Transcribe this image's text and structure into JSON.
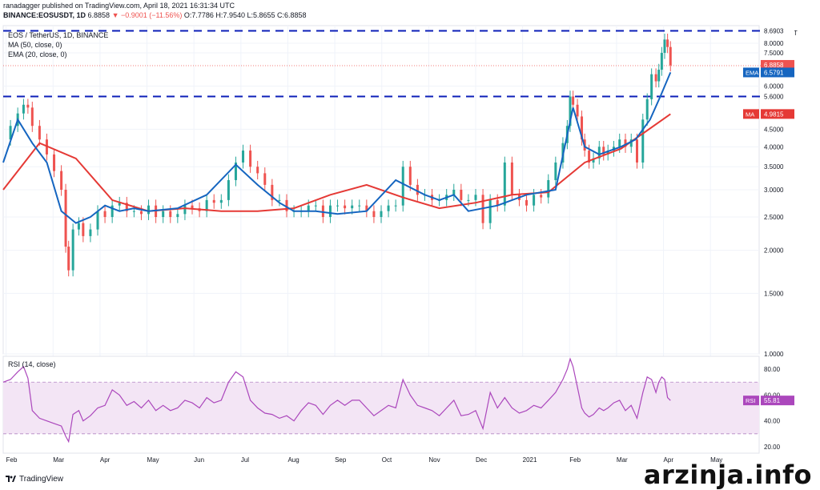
{
  "header": {
    "line1": "ranadagger published on TradingView.com, April 18, 2021 16:31:34 UTC",
    "symbol": "BINANCE:EOSUSDT, 1D",
    "last": "6.8858",
    "change": "▼ −0.9001 (−11.56%)",
    "ohlc": "O:7.7786 H:7.9540 L:5.8655 C:6.8858"
  },
  "legend": {
    "title": "EOS / TetherUS, 1D, BINANCE",
    "ma": "MA (50, close, 0)",
    "ema": "EMA (20, close, 0)",
    "rsi": "RSI (14, close)"
  },
  "brand": {
    "name": "TradingView"
  },
  "watermark": "arzinja.info",
  "colors": {
    "up": "#26a69a",
    "down": "#ef5350",
    "ma": "#e53935",
    "ema": "#1565c0",
    "rsi": "#ab47bc",
    "level": "#0d1fb8"
  },
  "chart_data": [
    {
      "type": "line",
      "title": "EOS / TetherUS, 1D, BINANCE",
      "unit_label": "USDT",
      "y_ticks": [
        "1.0000",
        "1.5000",
        "2.0000",
        "2.5000",
        "3.0000",
        "3.5000",
        "4.0000",
        "4.5000",
        "6.0000",
        "7.5000",
        "8.0000"
      ],
      "y_tick_values": [
        1.0,
        1.5,
        2.0,
        2.5,
        3.0,
        3.5,
        4.0,
        4.5,
        6.0,
        7.5,
        8.0
      ],
      "x_ticks": [
        "Feb",
        "Mar",
        "Apr",
        "May",
        "Jun",
        "Jul",
        "Aug",
        "Sep",
        "Oct",
        "Nov",
        "Dec",
        "2021",
        "Feb",
        "Mar",
        "Apr",
        "May"
      ],
      "ylim": [
        1.0,
        9.0
      ],
      "log_scale": true,
      "horizontal_levels": [
        8.6903,
        5.6
      ],
      "price_labels": [
        {
          "name": "level-high",
          "text": "8.6903",
          "value": 8.6903,
          "color": "#131722"
        },
        {
          "name": "last-price",
          "text": "6.8858",
          "sub": "07:28:30",
          "value": 6.8858,
          "color": "#ef5350"
        },
        {
          "name": "ema",
          "prefix": "EMA",
          "text": "6.5791",
          "value": 6.5791,
          "color": "#1565c0"
        },
        {
          "name": "level-low",
          "text": "5.6000",
          "value": 5.6,
          "color": "#131722"
        },
        {
          "name": "ma",
          "prefix": "MA",
          "text": "4.9815",
          "value": 4.9815,
          "color": "#e53935"
        }
      ],
      "series": [
        {
          "name": "MA (50, close, 0)",
          "x": [
            0,
            25,
            50,
            75,
            100,
            125,
            150,
            175,
            200,
            225,
            250,
            275,
            300,
            325,
            350,
            375,
            400,
            425,
            441,
            459
          ],
          "values": [
            3.0,
            4.1,
            3.7,
            2.8,
            2.6,
            2.65,
            2.6,
            2.6,
            2.65,
            2.9,
            3.1,
            2.85,
            2.65,
            2.75,
            2.9,
            2.95,
            3.6,
            3.95,
            4.4,
            4.98
          ]
        },
        {
          "name": "EMA (20, close, 0)",
          "x": [
            0,
            10,
            20,
            30,
            40,
            50,
            60,
            70,
            80,
            90,
            100,
            120,
            140,
            160,
            175,
            190,
            200,
            215,
            230,
            250,
            270,
            290,
            300,
            310,
            320,
            340,
            360,
            380,
            392,
            400,
            410,
            425,
            435,
            445,
            452,
            459
          ],
          "values": [
            3.6,
            4.8,
            4.1,
            3.6,
            2.6,
            2.4,
            2.5,
            2.7,
            2.6,
            2.65,
            2.6,
            2.65,
            2.9,
            3.55,
            3.1,
            2.75,
            2.6,
            2.6,
            2.55,
            2.6,
            3.2,
            2.9,
            2.8,
            2.9,
            2.6,
            2.7,
            2.9,
            3.0,
            5.2,
            4.0,
            3.8,
            4.0,
            4.2,
            4.8,
            5.6,
            6.58
          ]
        },
        {
          "name": "EOSUSDT close",
          "x": [
            0,
            5,
            10,
            14,
            17,
            20,
            25,
            30,
            35,
            40,
            43,
            45,
            48,
            52,
            55,
            60,
            65,
            70,
            75,
            80,
            85,
            90,
            95,
            100,
            105,
            110,
            115,
            120,
            125,
            130,
            135,
            140,
            145,
            150,
            155,
            160,
            165,
            170,
            175,
            180,
            185,
            190,
            195,
            200,
            205,
            210,
            215,
            220,
            225,
            230,
            235,
            240,
            245,
            250,
            255,
            260,
            265,
            270,
            275,
            280,
            285,
            290,
            295,
            300,
            305,
            310,
            315,
            320,
            325,
            330,
            335,
            340,
            345,
            350,
            355,
            360,
            365,
            370,
            375,
            380,
            385,
            388,
            390,
            392,
            395,
            398,
            400,
            403,
            406,
            410,
            413,
            416,
            420,
            424,
            428,
            432,
            436,
            440,
            443,
            446,
            449,
            451,
            453,
            455,
            457,
            459
          ],
          "values": [
            4.2,
            4.6,
            5.0,
            5.3,
            5.2,
            4.6,
            4.2,
            3.8,
            3.4,
            3.0,
            2.05,
            1.75,
            2.3,
            2.4,
            2.2,
            2.3,
            2.6,
            2.5,
            2.7,
            2.75,
            2.6,
            2.6,
            2.55,
            2.7,
            2.5,
            2.6,
            2.5,
            2.55,
            2.7,
            2.65,
            2.6,
            2.8,
            2.75,
            2.8,
            3.2,
            3.6,
            3.9,
            3.5,
            3.35,
            3.1,
            2.8,
            2.8,
            2.6,
            2.6,
            2.6,
            2.7,
            2.7,
            2.5,
            2.7,
            2.7,
            2.65,
            2.7,
            2.7,
            2.6,
            2.5,
            2.6,
            2.7,
            2.7,
            3.5,
            3.1,
            2.9,
            2.9,
            2.8,
            2.8,
            2.9,
            3.0,
            2.8,
            2.8,
            2.9,
            2.4,
            2.8,
            2.7,
            3.6,
            2.9,
            2.8,
            2.7,
            2.9,
            2.85,
            3.2,
            3.6,
            4.1,
            4.6,
            5.6,
            5.3,
            4.9,
            4.2,
            3.9,
            3.6,
            3.7,
            4.0,
            3.8,
            3.9,
            4.0,
            4.2,
            4.0,
            4.2,
            3.6,
            4.8,
            5.5,
            6.5,
            6.2,
            6.7,
            7.5,
            8.2,
            7.8,
            6.9
          ]
        }
      ]
    },
    {
      "type": "line",
      "title": "RSI (14, close)",
      "y_ticks": [
        "20.00",
        "40.00",
        "60.00",
        "80.00"
      ],
      "y_tick_values": [
        20,
        40,
        60,
        80
      ],
      "ylim": [
        15,
        90
      ],
      "band": [
        30,
        70
      ],
      "last_label": {
        "prefix": "RSI",
        "text": "55.81",
        "value": 55.81
      },
      "series": [
        {
          "name": "RSI (14, close)",
          "x": [
            0,
            5,
            10,
            14,
            17,
            20,
            25,
            30,
            35,
            40,
            43,
            45,
            48,
            52,
            55,
            60,
            65,
            70,
            75,
            80,
            85,
            90,
            95,
            100,
            105,
            110,
            115,
            120,
            125,
            130,
            135,
            140,
            145,
            150,
            155,
            160,
            165,
            170,
            175,
            180,
            185,
            190,
            195,
            200,
            205,
            210,
            215,
            220,
            225,
            230,
            235,
            240,
            245,
            250,
            255,
            260,
            265,
            270,
            275,
            280,
            285,
            290,
            295,
            300,
            305,
            310,
            315,
            320,
            325,
            330,
            335,
            340,
            345,
            350,
            355,
            360,
            365,
            370,
            375,
            380,
            385,
            388,
            390,
            392,
            395,
            398,
            400,
            403,
            406,
            410,
            413,
            416,
            420,
            424,
            428,
            432,
            436,
            440,
            443,
            446,
            449,
            451,
            453,
            455,
            457,
            459
          ],
          "values": [
            70,
            72,
            78,
            82,
            73,
            48,
            42,
            40,
            38,
            36,
            28,
            24,
            45,
            48,
            40,
            44,
            50,
            52,
            64,
            60,
            52,
            55,
            50,
            56,
            48,
            52,
            48,
            50,
            56,
            54,
            50,
            58,
            54,
            56,
            70,
            78,
            74,
            56,
            50,
            46,
            45,
            42,
            44,
            40,
            48,
            54,
            52,
            45,
            52,
            56,
            52,
            56,
            56,
            50,
            44,
            48,
            52,
            50,
            72,
            60,
            52,
            50,
            48,
            44,
            50,
            56,
            44,
            45,
            48,
            34,
            62,
            50,
            58,
            50,
            46,
            48,
            52,
            50,
            56,
            62,
            72,
            80,
            88,
            82,
            66,
            50,
            46,
            43,
            45,
            50,
            48,
            50,
            54,
            56,
            48,
            52,
            42,
            62,
            74,
            72,
            62,
            70,
            74,
            72,
            58,
            55.81
          ]
        }
      ]
    }
  ]
}
